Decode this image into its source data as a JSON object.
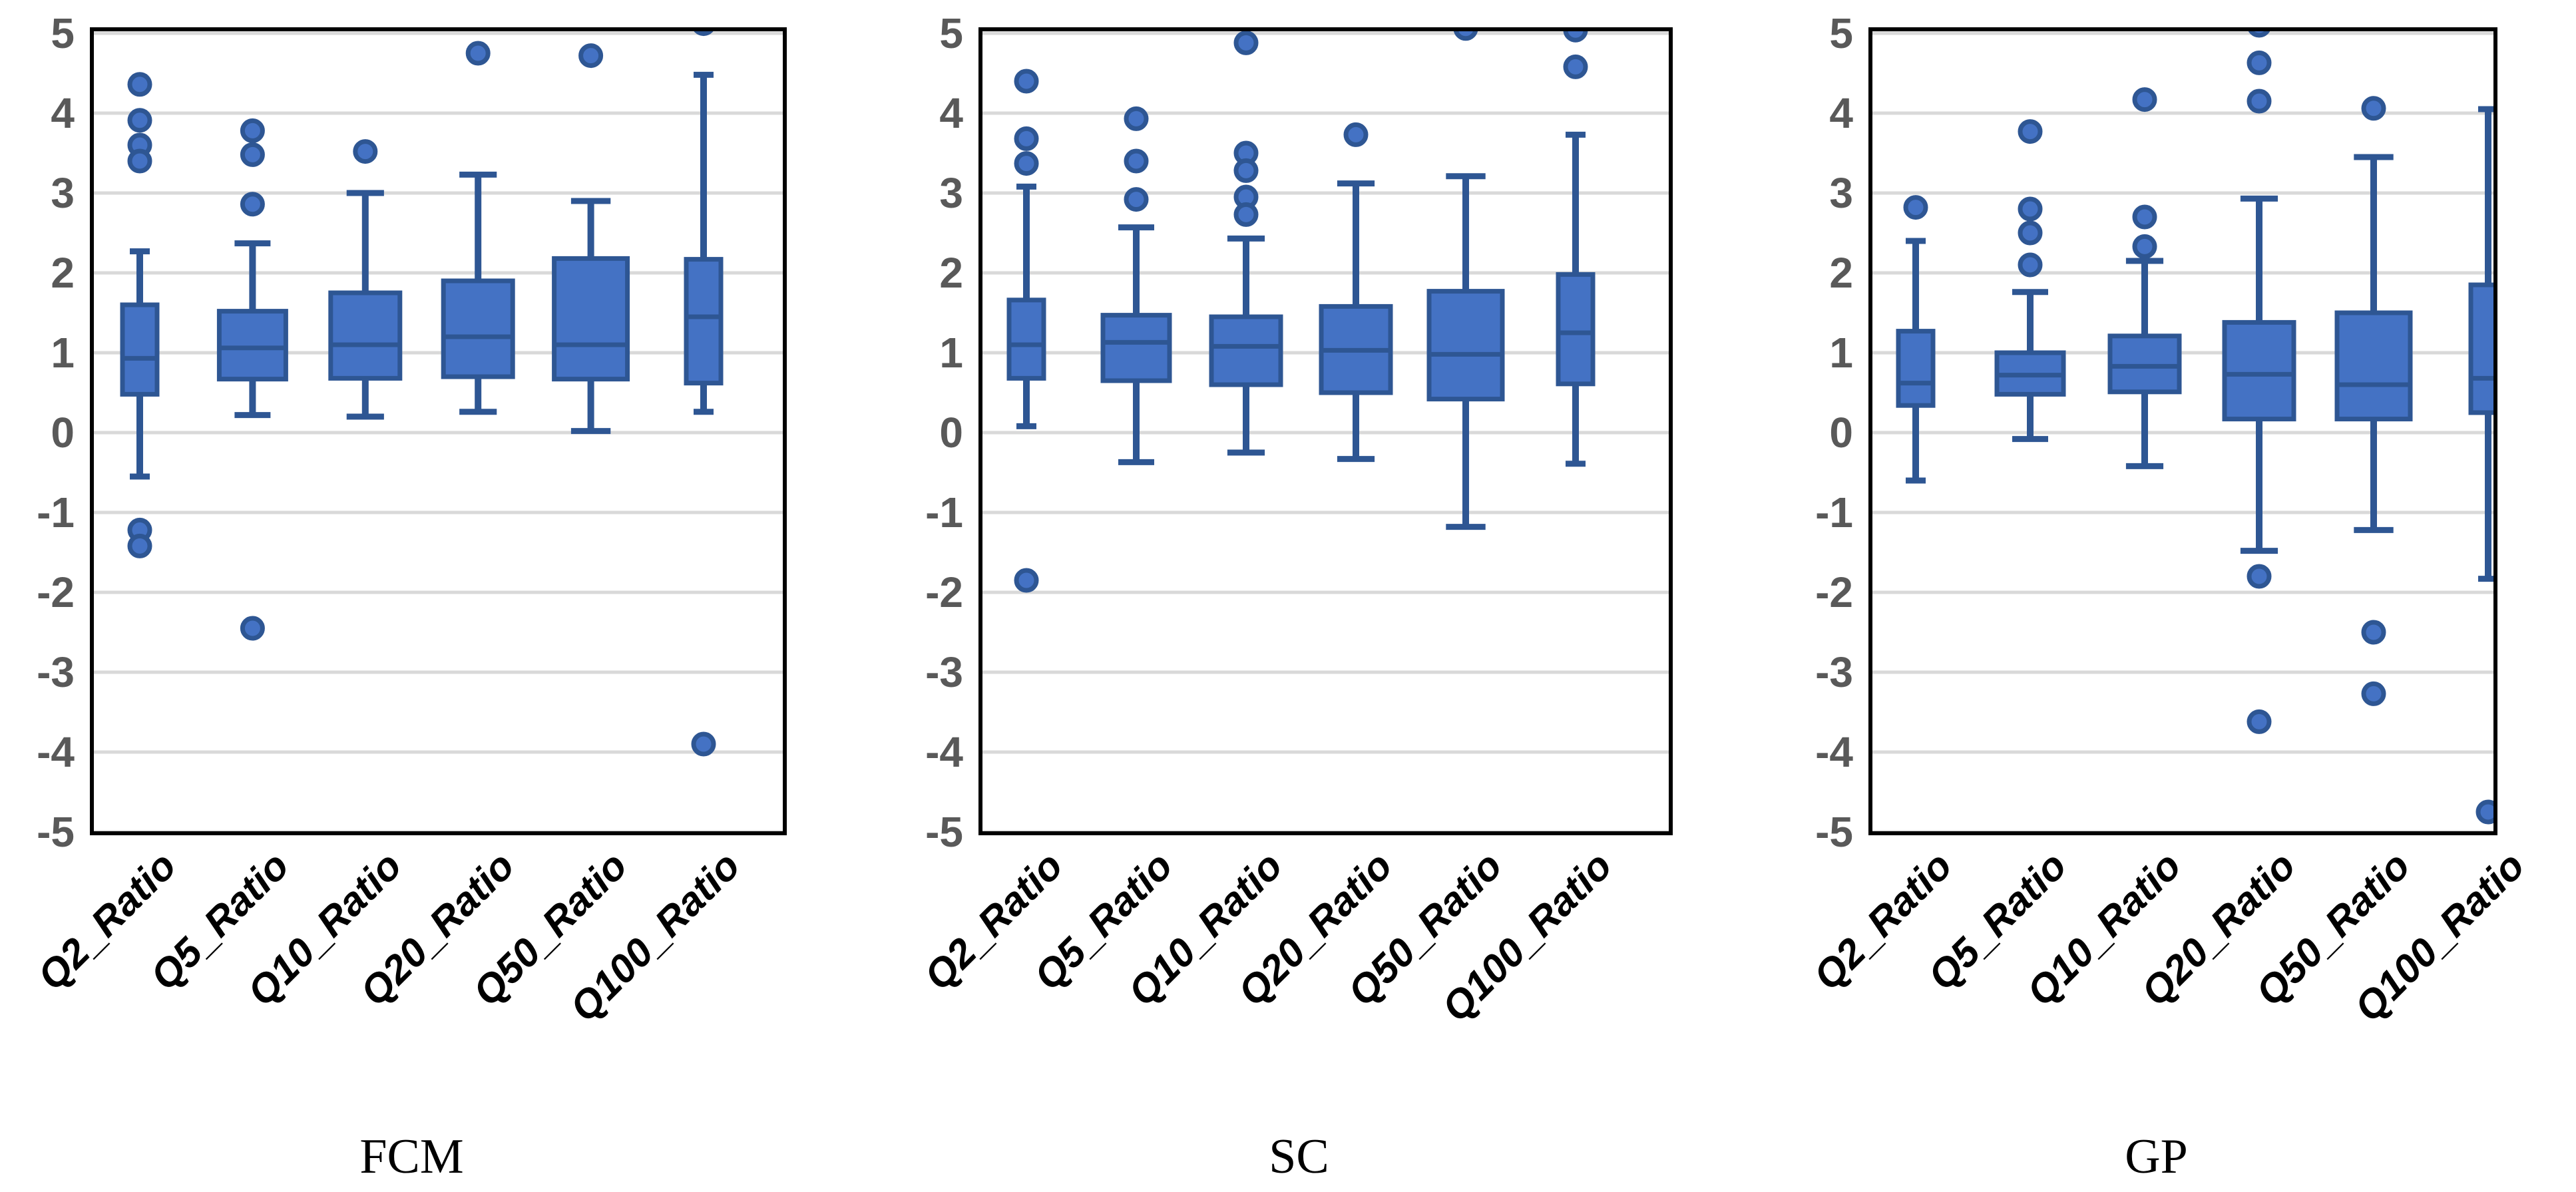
{
  "figure": {
    "background": "#ffffff",
    "description": "Three box-and-whisker panels of flood quantile ratios for three regionalization methods"
  },
  "style": {
    "box_fill": "#4472C4",
    "box_stroke": "#2E5693",
    "whisker_color": "#2E5693",
    "median_color": "#2E5693",
    "outlier_fill": "#4472C4",
    "outlier_stroke": "#2E5693",
    "gridline_color": "#D9D9D9",
    "plot_border_color": "#000000",
    "axis_text_color": "#595959",
    "category_text_color": "#000000",
    "title_text_color": "#000000"
  },
  "chart_data": [
    {
      "type": "box",
      "title": "FCM",
      "ylim": [
        -5,
        5
      ],
      "yticks": [
        5,
        4,
        3,
        2,
        1,
        0,
        -1,
        -2,
        -3,
        -4,
        -5
      ],
      "grid": true,
      "legend": "none",
      "categories": [
        "Q2_Ratio",
        "Q5_Ratio",
        "Q10_Ratio",
        "Q20_Ratio",
        "Q50_Ratio",
        "Q100_Ratio"
      ],
      "boxes": [
        {
          "category": "Q2_Ratio",
          "whisker_low": -0.55,
          "q1": 0.48,
          "median": 0.93,
          "q3": 1.6,
          "whisker_high": 2.27,
          "outliers": [
            4.36,
            3.91,
            3.6,
            3.4,
            -1.22,
            -1.42
          ]
        },
        {
          "category": "Q5_Ratio",
          "whisker_low": 0.22,
          "q1": 0.67,
          "median": 1.06,
          "q3": 1.52,
          "whisker_high": 2.37,
          "outliers": [
            3.78,
            3.48,
            2.86,
            -2.45
          ]
        },
        {
          "category": "Q10_Ratio",
          "whisker_low": 0.2,
          "q1": 0.68,
          "median": 1.1,
          "q3": 1.75,
          "whisker_high": 3.0,
          "outliers": [
            3.52
          ]
        },
        {
          "category": "Q20_Ratio",
          "whisker_low": 0.26,
          "q1": 0.7,
          "median": 1.2,
          "q3": 1.9,
          "whisker_high": 3.23,
          "outliers": [
            4.75
          ]
        },
        {
          "category": "Q50_Ratio",
          "whisker_low": 0.02,
          "q1": 0.67,
          "median": 1.1,
          "q3": 2.18,
          "whisker_high": 2.9,
          "outliers": [
            4.72
          ]
        },
        {
          "category": "Q100_Ratio",
          "whisker_low": 0.26,
          "q1": 0.62,
          "median": 1.45,
          "q3": 2.17,
          "whisker_high": 4.48,
          "outliers": [
            5.12,
            -3.9
          ]
        }
      ]
    },
    {
      "type": "box",
      "title": "SC",
      "ylim": [
        -5,
        5
      ],
      "yticks": [
        5,
        4,
        3,
        2,
        1,
        0,
        -1,
        -2,
        -3,
        -4,
        -5
      ],
      "grid": true,
      "legend": "none",
      "categories": [
        "Q2_Ratio",
        "Q5_Ratio",
        "Q10_Ratio",
        "Q20_Ratio",
        "Q50_Ratio",
        "Q100_Ratio"
      ],
      "boxes": [
        {
          "category": "Q2_Ratio",
          "whisker_low": 0.08,
          "q1": 0.68,
          "median": 1.1,
          "q3": 1.66,
          "whisker_high": 3.08,
          "outliers": [
            4.4,
            3.68,
            3.37,
            -1.85
          ]
        },
        {
          "category": "Q5_Ratio",
          "whisker_low": -0.37,
          "q1": 0.65,
          "median": 1.13,
          "q3": 1.47,
          "whisker_high": 2.57,
          "outliers": [
            3.93,
            3.4,
            2.92
          ]
        },
        {
          "category": "Q10_Ratio",
          "whisker_low": -0.25,
          "q1": 0.6,
          "median": 1.08,
          "q3": 1.45,
          "whisker_high": 2.43,
          "outliers": [
            4.88,
            3.5,
            3.28,
            2.95,
            2.73
          ]
        },
        {
          "category": "Q20_Ratio",
          "whisker_low": -0.33,
          "q1": 0.5,
          "median": 1.03,
          "q3": 1.58,
          "whisker_high": 3.12,
          "outliers": [
            3.73
          ]
        },
        {
          "category": "Q50_Ratio",
          "whisker_low": -1.18,
          "q1": 0.42,
          "median": 0.98,
          "q3": 1.77,
          "whisker_high": 3.21,
          "outliers": [
            5.06
          ]
        },
        {
          "category": "Q100_Ratio",
          "whisker_low": -0.39,
          "q1": 0.61,
          "median": 1.25,
          "q3": 1.98,
          "whisker_high": 3.73,
          "outliers": [
            5.04,
            4.58
          ]
        }
      ]
    },
    {
      "type": "box",
      "title": "GP",
      "ylim": [
        -5,
        5
      ],
      "yticks": [
        5,
        4,
        3,
        2,
        1,
        0,
        -1,
        -2,
        -3,
        -4,
        -5
      ],
      "grid": true,
      "legend": "none",
      "categories": [
        "Q2_Ratio",
        "Q5_Ratio",
        "Q10_Ratio",
        "Q20_Ratio",
        "Q50_Ratio",
        "Q100_Ratio"
      ],
      "boxes": [
        {
          "category": "Q2_Ratio",
          "whisker_low": -0.6,
          "q1": 0.34,
          "median": 0.62,
          "q3": 1.27,
          "whisker_high": 2.4,
          "outliers": [
            2.82
          ]
        },
        {
          "category": "Q5_Ratio",
          "whisker_low": -0.08,
          "q1": 0.48,
          "median": 0.72,
          "q3": 1.0,
          "whisker_high": 1.76,
          "outliers": [
            3.77,
            2.8,
            2.5,
            2.1
          ]
        },
        {
          "category": "Q10_Ratio",
          "whisker_low": -0.42,
          "q1": 0.51,
          "median": 0.83,
          "q3": 1.21,
          "whisker_high": 2.15,
          "outliers": [
            4.17,
            2.7,
            2.33
          ]
        },
        {
          "category": "Q20_Ratio",
          "whisker_low": -1.48,
          "q1": 0.17,
          "median": 0.73,
          "q3": 1.38,
          "whisker_high": 2.93,
          "outliers": [
            5.1,
            4.63,
            4.15,
            -1.8,
            -3.62
          ]
        },
        {
          "category": "Q50_Ratio",
          "whisker_low": -1.22,
          "q1": 0.17,
          "median": 0.6,
          "q3": 1.5,
          "whisker_high": 3.45,
          "outliers": [
            4.06,
            -2.5,
            -3.27
          ]
        },
        {
          "category": "Q100_Ratio",
          "whisker_low": -1.83,
          "q1": 0.25,
          "median": 0.68,
          "q3": 1.85,
          "whisker_high": 4.05,
          "outliers": [
            -4.75
          ]
        }
      ]
    }
  ]
}
